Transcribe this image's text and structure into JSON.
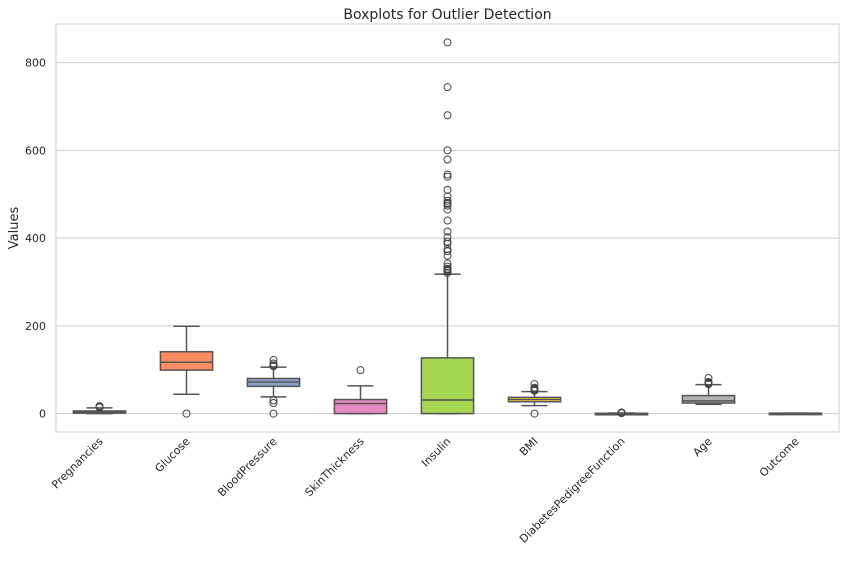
{
  "chart_data": {
    "type": "box",
    "title": "Boxplots for Outlier Detection",
    "xlabel": "",
    "ylabel": "Values",
    "ylim": [
      -42,
      888
    ],
    "yticks": [
      0,
      200,
      400,
      600,
      800
    ],
    "grid": "horizontal",
    "categories": [
      "Pregnancies",
      "Glucose",
      "BloodPressure",
      "SkinThickness",
      "Insulin",
      "BMI",
      "DiabetesPedigreeFunction",
      "Age",
      "Outcome"
    ],
    "colors": [
      "#66c2a5",
      "#fc8d62",
      "#8da0cb",
      "#e78ac3",
      "#a6d854",
      "#ffd92f",
      "#e5c494",
      "#b3b3b3",
      "#66c2a5"
    ],
    "boxes": [
      {
        "category": "Pregnancies",
        "whisker_low": 0,
        "q1": 1,
        "median": 3,
        "q3": 6,
        "whisker_high": 13,
        "outliers": [
          14,
          15,
          17
        ]
      },
      {
        "category": "Glucose",
        "whisker_low": 44,
        "q1": 99,
        "median": 117,
        "q3": 141,
        "whisker_high": 199,
        "outliers": [
          0
        ]
      },
      {
        "category": "BloodPressure",
        "whisker_low": 38,
        "q1": 62,
        "median": 72,
        "q3": 80,
        "whisker_high": 106,
        "outliers": [
          0,
          24,
          30,
          108,
          110,
          114,
          122
        ]
      },
      {
        "category": "SkinThickness",
        "whisker_low": 0,
        "q1": 0,
        "median": 23,
        "q3": 32,
        "whisker_high": 63,
        "outliers": [
          99
        ]
      },
      {
        "category": "Insulin",
        "whisker_low": 0,
        "q1": 0,
        "median": 31,
        "q3": 127,
        "whisker_high": 318,
        "outliers": [
          321,
          325,
          326,
          328,
          330,
          335,
          342,
          360,
          370,
          375,
          387,
          392,
          402,
          415,
          440,
          465,
          474,
          478,
          480,
          485,
          495,
          510,
          540,
          545,
          579,
          600,
          680,
          744,
          846
        ]
      },
      {
        "category": "BMI",
        "whisker_low": 18,
        "q1": 27,
        "median": 32,
        "q3": 37,
        "whisker_high": 50,
        "outliers": [
          0,
          52,
          53,
          55,
          57,
          59,
          67
        ]
      },
      {
        "category": "DiabetesPedigreeFunction",
        "whisker_low": 0.08,
        "q1": 0.24,
        "median": 0.37,
        "q3": 0.63,
        "whisker_high": 1.2,
        "outliers": [
          1.22,
          1.4,
          1.6,
          1.8,
          2.0,
          2.3,
          2.42
        ]
      },
      {
        "category": "Age",
        "whisker_low": 21,
        "q1": 24,
        "median": 29,
        "q3": 41,
        "whisker_high": 66,
        "outliers": [
          67,
          68,
          69,
          70,
          72,
          81
        ]
      },
      {
        "category": "Outcome",
        "whisker_low": 0,
        "q1": 0,
        "median": 0,
        "q3": 1,
        "whisker_high": 1,
        "outliers": []
      }
    ]
  }
}
